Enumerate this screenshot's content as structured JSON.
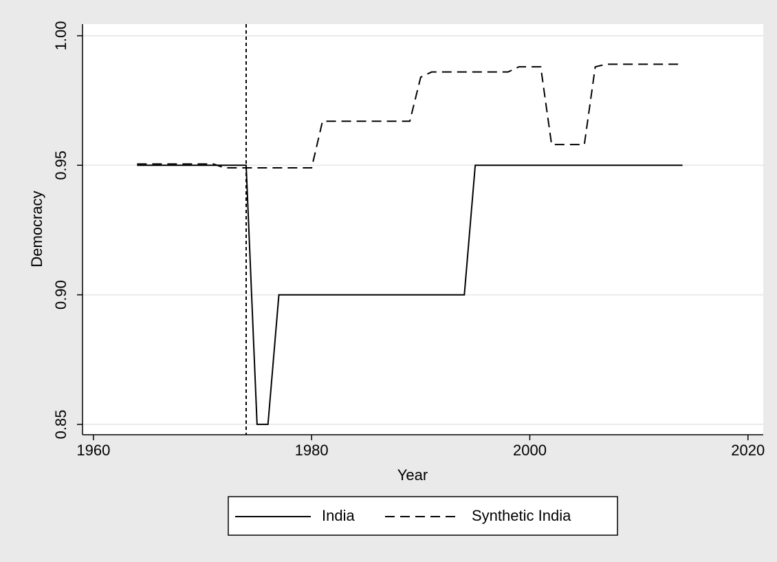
{
  "chart_data": {
    "type": "line",
    "x_label": "Year",
    "y_label": "Democracy",
    "x": [
      1964,
      1965,
      1966,
      1967,
      1968,
      1969,
      1970,
      1971,
      1972,
      1973,
      1974,
      1975,
      1976,
      1977,
      1978,
      1979,
      1980,
      1981,
      1982,
      1983,
      1984,
      1985,
      1986,
      1987,
      1988,
      1989,
      1990,
      1991,
      1992,
      1993,
      1994,
      1995,
      1996,
      1997,
      1998,
      1999,
      2000,
      2001,
      2002,
      2003,
      2004,
      2005,
      2006,
      2007,
      2008,
      2009,
      2010,
      2011,
      2012,
      2013,
      2014
    ],
    "series": [
      {
        "name": "India",
        "color": "#000000",
        "dash": "solid",
        "values": [
          0.95,
          0.95,
          0.95,
          0.95,
          0.95,
          0.95,
          0.95,
          0.95,
          0.95,
          0.95,
          0.95,
          0.85,
          0.85,
          0.9,
          0.9,
          0.9,
          0.9,
          0.9,
          0.9,
          0.9,
          0.9,
          0.9,
          0.9,
          0.9,
          0.9,
          0.9,
          0.9,
          0.9,
          0.9,
          0.9,
          0.9,
          0.95,
          0.95,
          0.95,
          0.95,
          0.95,
          0.95,
          0.95,
          0.95,
          0.95,
          0.95,
          0.95,
          0.95,
          0.95,
          0.95,
          0.95,
          0.95,
          0.95,
          0.95,
          0.95,
          0.95
        ]
      },
      {
        "name": "Synthetic India",
        "color": "#000000",
        "dash": "dashed",
        "values": [
          0.9505,
          0.9505,
          0.9505,
          0.9505,
          0.9505,
          0.9505,
          0.9505,
          0.9505,
          0.949,
          0.949,
          0.949,
          0.949,
          0.949,
          0.949,
          0.949,
          0.949,
          0.949,
          0.967,
          0.967,
          0.967,
          0.967,
          0.967,
          0.967,
          0.967,
          0.967,
          0.967,
          0.984,
          0.986,
          0.986,
          0.986,
          0.986,
          0.986,
          0.986,
          0.986,
          0.986,
          0.988,
          0.988,
          0.988,
          0.958,
          0.958,
          0.958,
          0.958,
          0.988,
          0.989,
          0.989,
          0.989,
          0.989,
          0.989,
          0.989,
          0.989,
          0.989
        ]
      }
    ],
    "xline": 1974,
    "xlim": [
      1959,
      2021.4
    ],
    "xticks": [
      1960,
      1980,
      2000,
      2020
    ],
    "ylim": [
      0.846,
      1.0045
    ],
    "yticks": [
      0.85,
      {
        "value": 0.9,
        "label": "0.90"
      },
      0.95,
      {
        "value": 1.0,
        "label": "1.00"
      }
    ],
    "grid": true,
    "legend": "bottom"
  }
}
